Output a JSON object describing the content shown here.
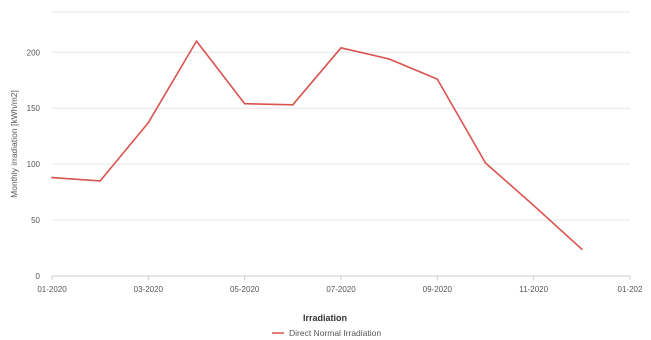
{
  "chart_data": {
    "type": "line",
    "title": "",
    "xlabel": "",
    "ylabel": "Monthly irradiation [kWh/m2]",
    "x": [
      "01-2020",
      "02-2020",
      "03-2020",
      "04-2020",
      "05-2020",
      "06-2020",
      "07-2020",
      "08-2020",
      "09-2020",
      "10-2020",
      "11-2020",
      "12-2020"
    ],
    "x_tick_labels": [
      "01-2020",
      "03-2020",
      "05-2020",
      "07-2020",
      "09-2020",
      "11-2020",
      "01-202"
    ],
    "y_ticks": [
      0,
      50,
      100,
      150,
      200
    ],
    "ylim": [
      0,
      236
    ],
    "grid": true,
    "legend": {
      "title": "Irradiation",
      "position": "bottom"
    },
    "series": [
      {
        "name": "Direct Normal Irradiation",
        "color": "#d9534f",
        "values": [
          88,
          85,
          137,
          210,
          154,
          153,
          204,
          194,
          176,
          101,
          63,
          24
        ]
      }
    ]
  }
}
